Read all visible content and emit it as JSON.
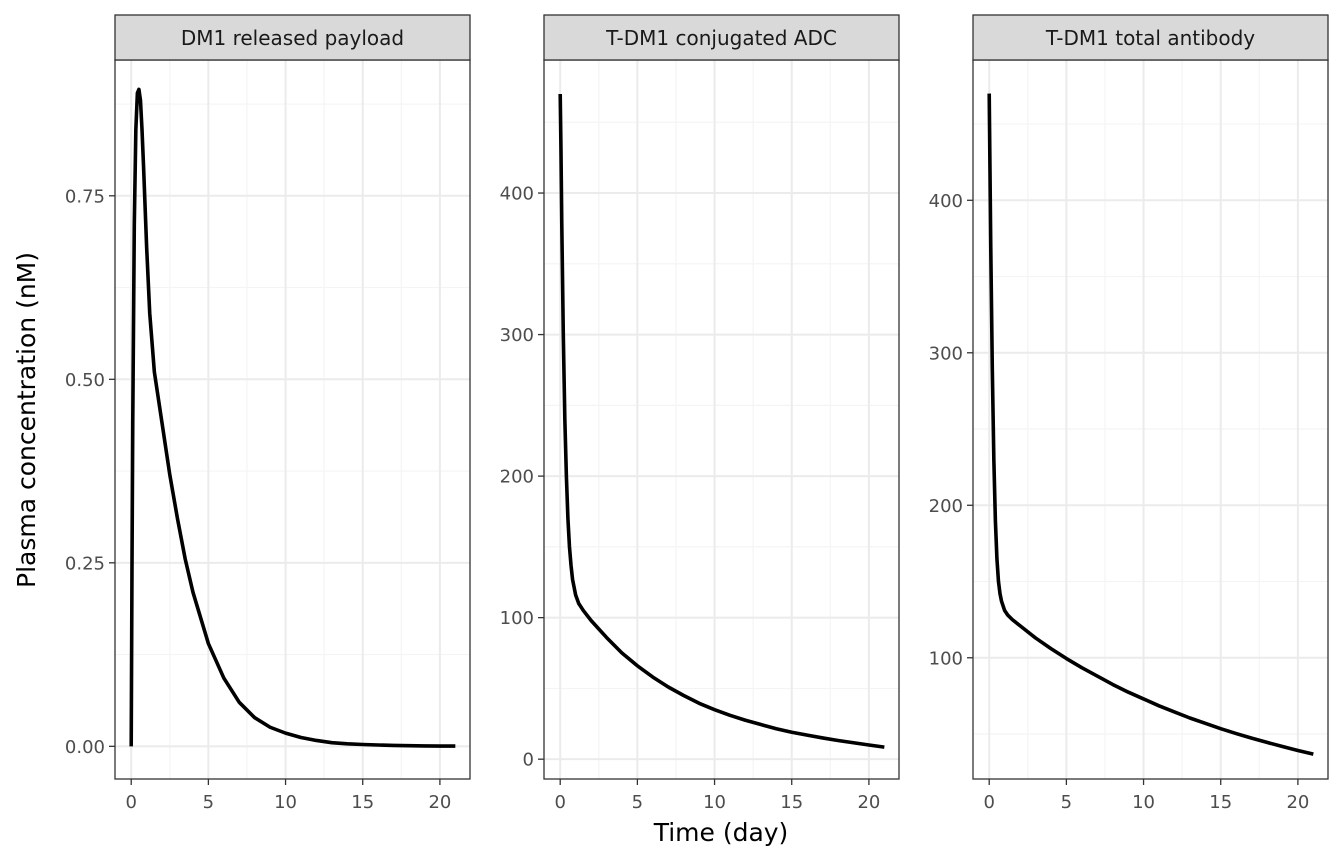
{
  "chart_data": {
    "type": "line",
    "layout": "facets",
    "x_label": "Time (day)",
    "y_label": "Plasma concentration (nM)",
    "grid": true,
    "legend": "none",
    "colors": {
      "line": "#000000",
      "strip_fill": "#d9d9d9",
      "panel_border": "#333333",
      "grid_major": "#ebebeb",
      "grid_minor": "#f4f4f4"
    },
    "facets": [
      {
        "title": "DM1 released payload",
        "xlim": [
          -1.05,
          21.95
        ],
        "ylim": [
          -0.0445,
          0.935
        ],
        "x_ticks": [
          0,
          5,
          10,
          15,
          20
        ],
        "y_ticks": [
          0,
          0.25,
          0.5,
          0.75
        ],
        "y_tick_labels": [
          "0.00",
          "0.25",
          "0.50",
          "0.75"
        ],
        "series": [
          {
            "x": [
              0,
              0.05,
              0.1,
              0.2,
              0.3,
              0.4,
              0.5,
              0.6,
              0.7,
              0.8,
              1.0,
              1.2,
              1.5,
              2,
              2.5,
              3,
              3.5,
              4,
              5,
              6,
              7,
              8,
              9,
              10,
              11,
              12,
              13,
              14,
              15,
              16,
              17,
              18,
              19,
              20,
              21
            ],
            "y": [
              0,
              0.24,
              0.44,
              0.71,
              0.84,
              0.89,
              0.895,
              0.88,
              0.84,
              0.79,
              0.68,
              0.59,
              0.51,
              0.44,
              0.37,
              0.31,
              0.255,
              0.21,
              0.14,
              0.093,
              0.06,
              0.039,
              0.026,
              0.018,
              0.012,
              0.008,
              0.005,
              0.0035,
              0.0025,
              0.0018,
              0.0012,
              0.0009,
              0.0006,
              0.0004,
              0.0003
            ]
          }
        ]
      },
      {
        "title": "T-DM1 conjugated ADC",
        "xlim": [
          -1.05,
          21.95
        ],
        "ylim": [
          -14,
          494
        ],
        "x_ticks": [
          0,
          5,
          10,
          15,
          20
        ],
        "y_ticks": [
          0,
          100,
          200,
          300,
          400
        ],
        "y_tick_labels": [
          "0",
          "100",
          "200",
          "300",
          "400"
        ],
        "series": [
          {
            "x": [
              0,
              0.05,
              0.1,
              0.2,
              0.3,
              0.4,
              0.5,
              0.6,
              0.7,
              0.8,
              1.0,
              1.2,
              1.5,
              2,
              3,
              4,
              5,
              6,
              7,
              8,
              9,
              10,
              11,
              12,
              13,
              14,
              15,
              16,
              17,
              18,
              19,
              20,
              21
            ],
            "y": [
              470,
              430,
              380,
              300,
              240,
              200,
              170,
              150,
              137,
              127,
              116,
              110,
              105,
              98,
              86,
              75,
              66,
              58,
              51,
              45,
              39.5,
              35,
              31,
              27.5,
              24.5,
              21.5,
              19,
              17,
              15,
              13.2,
              11.6,
              10,
              8.5
            ]
          }
        ]
      },
      {
        "title": "T-DM1 total antibody",
        "xlim": [
          -1.05,
          21.95
        ],
        "ylim": [
          20.5,
          492
        ],
        "x_ticks": [
          0,
          5,
          10,
          15,
          20
        ],
        "y_ticks": [
          100,
          200,
          300,
          400
        ],
        "y_tick_labels": [
          "100",
          "200",
          "300",
          "400"
        ],
        "series": [
          {
            "x": [
              0,
              0.05,
              0.1,
              0.2,
              0.3,
              0.4,
              0.5,
              0.6,
              0.7,
              0.8,
              1.0,
              1.2,
              1.5,
              2,
              3,
              4,
              5,
              6,
              7,
              8,
              9,
              10,
              11,
              12,
              13,
              14,
              15,
              16,
              17,
              18,
              19,
              20,
              21
            ],
            "y": [
              470,
              420,
              370,
              290,
              230,
              190,
              165,
              150,
              142,
              137,
              131,
              128,
              125,
              121,
              113,
              106,
              99.5,
              93.5,
              88,
              82.5,
              77.5,
              73,
              68.5,
              64.5,
              60.5,
              57,
              53.5,
              50.3,
              47.3,
              44.5,
              41.8,
              39.2,
              36.8
            ]
          }
        ]
      }
    ]
  }
}
